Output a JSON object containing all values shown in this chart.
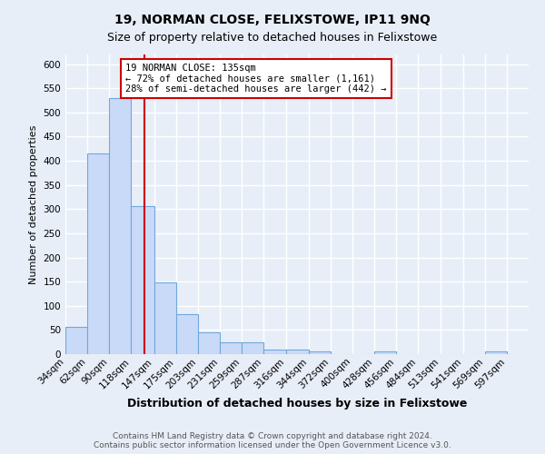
{
  "title": "19, NORMAN CLOSE, FELIXSTOWE, IP11 9NQ",
  "subtitle": "Size of property relative to detached houses in Felixstowe",
  "xlabel": "Distribution of detached houses by size in Felixstowe",
  "ylabel": "Number of detached properties",
  "footer_line1": "Contains HM Land Registry data © Crown copyright and database right 2024.",
  "footer_line2": "Contains public sector information licensed under the Open Government Licence v3.0.",
  "bin_edges": [
    34,
    62,
    90,
    118,
    147,
    175,
    203,
    231,
    259,
    287,
    316,
    344,
    372,
    400,
    428,
    456,
    484,
    513,
    541,
    569,
    597,
    625
  ],
  "bin_labels": [
    "34sqm",
    "62sqm",
    "90sqm",
    "118sqm",
    "147sqm",
    "175sqm",
    "203sqm",
    "231sqm",
    "259sqm",
    "287sqm",
    "316sqm",
    "344sqm",
    "372sqm",
    "400sqm",
    "428sqm",
    "456sqm",
    "484sqm",
    "513sqm",
    "541sqm",
    "569sqm",
    "597sqm"
  ],
  "values": [
    57,
    415,
    530,
    307,
    148,
    83,
    45,
    24,
    25,
    10,
    10,
    5,
    0,
    0,
    5,
    0,
    0,
    0,
    0,
    5,
    0
  ],
  "bar_color": "#c9daf8",
  "bar_edge_color": "#6fa8dc",
  "vline_x": 135,
  "vline_color": "#cc0000",
  "annotation_text": "19 NORMAN CLOSE: 135sqm\n← 72% of detached houses are smaller (1,161)\n28% of semi-detached houses are larger (442) →",
  "annotation_box_color": "#ffffff",
  "annotation_box_edge": "#cc0000",
  "ylim": [
    0,
    620
  ],
  "xlim_left": 34,
  "xlim_right": 625,
  "bg_color": "#e8eef8",
  "grid_color": "#ffffff",
  "title_fontsize": 10,
  "subtitle_fontsize": 9,
  "xlabel_fontsize": 9,
  "ylabel_fontsize": 8,
  "tick_fontsize": 7.5,
  "annotation_fontsize": 7.5,
  "footer_fontsize": 6.5
}
